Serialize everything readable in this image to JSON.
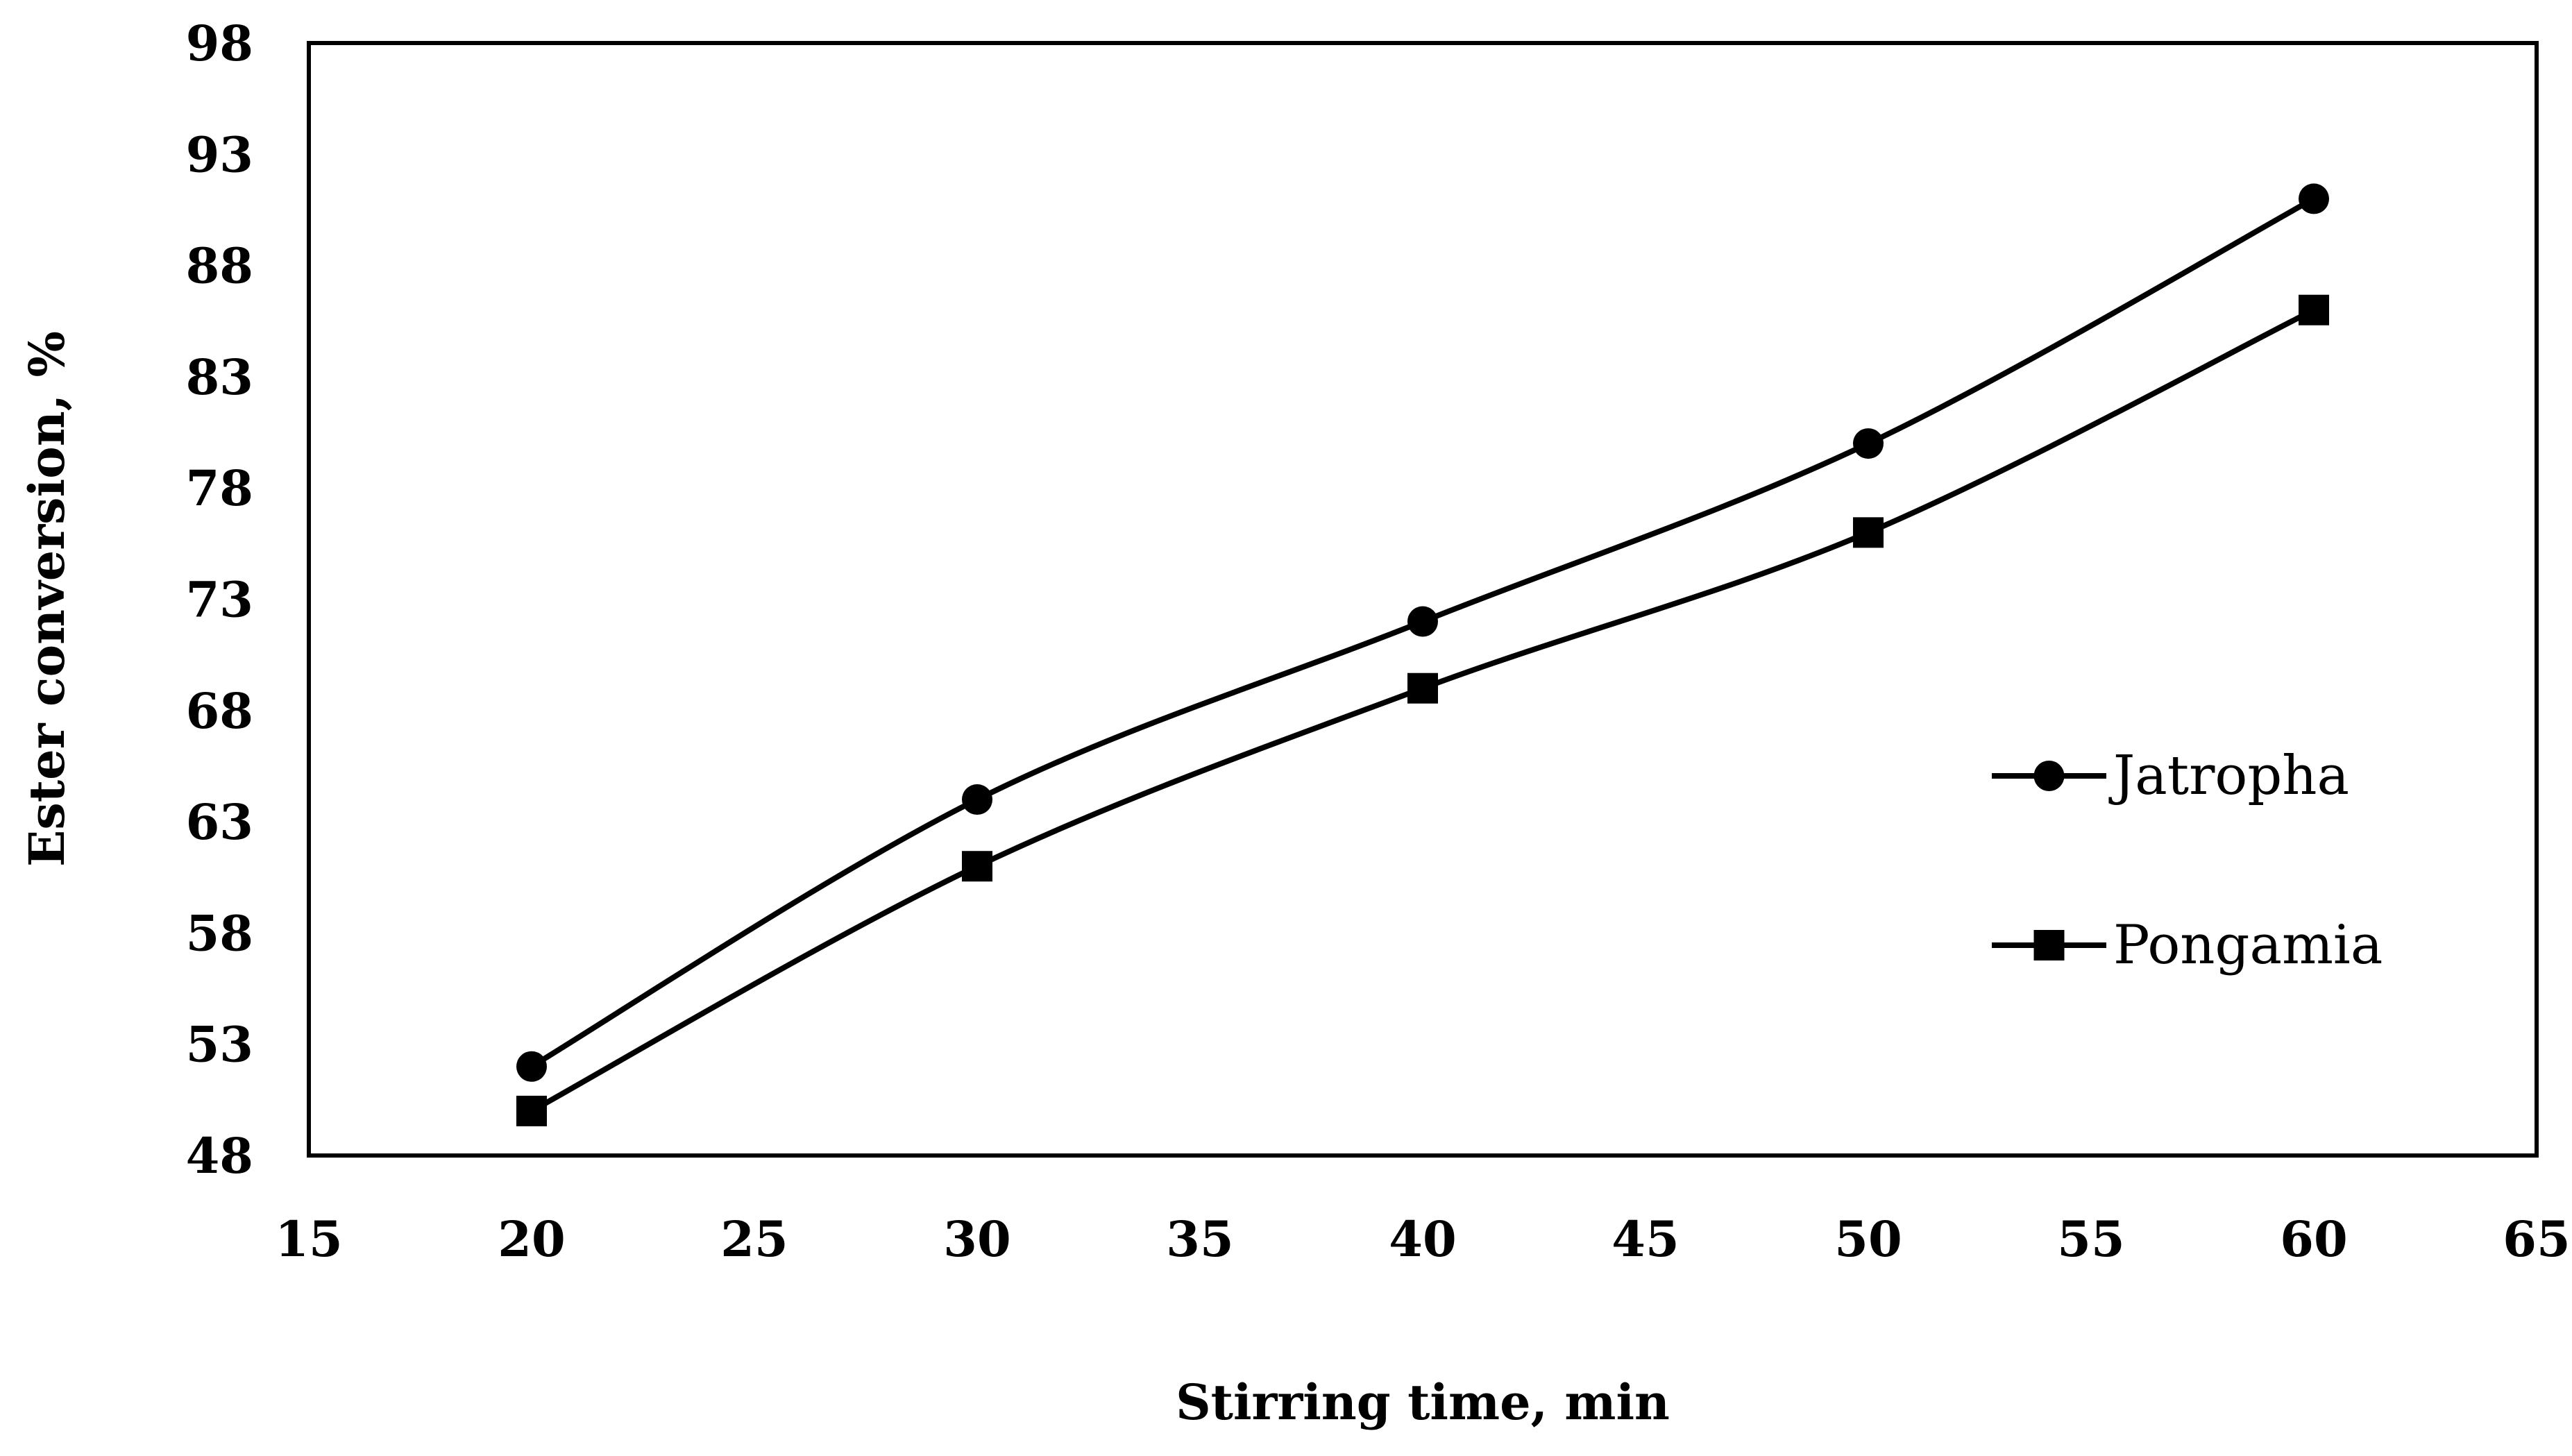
{
  "chart_data": {
    "type": "line",
    "title": "",
    "xlabel": "Stirring time, min",
    "ylabel": "Ester conversion, %",
    "xlim": [
      15,
      65
    ],
    "ylim": [
      48,
      98
    ],
    "xticks": [
      15,
      20,
      25,
      30,
      35,
      40,
      45,
      50,
      55,
      60,
      65
    ],
    "yticks": [
      48,
      53,
      58,
      63,
      68,
      73,
      78,
      83,
      88,
      93,
      98
    ],
    "grid": false,
    "legend_position": "right",
    "series": [
      {
        "name": "Jatropha",
        "marker": "circle",
        "color": "#000000",
        "x": [
          20,
          30,
          40,
          50,
          60
        ],
        "y": [
          52,
          64,
          72,
          80,
          91
        ]
      },
      {
        "name": "Pongamia",
        "marker": "square",
        "color": "#000000",
        "x": [
          20,
          30,
          40,
          50,
          60
        ],
        "y": [
          50,
          61,
          69,
          76,
          86
        ]
      }
    ]
  }
}
